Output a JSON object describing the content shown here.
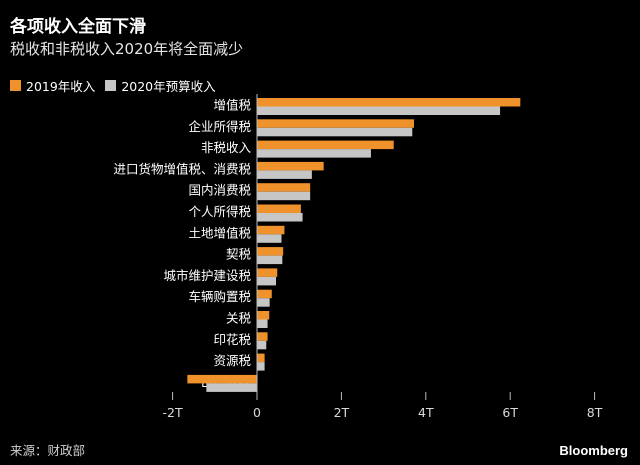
{
  "header": {
    "title": "各项收入全面下滑",
    "subtitle": "税收和非税收入2020年将全面减少"
  },
  "colors": {
    "series_2019": "#f0922b",
    "series_2020": "#c6c6c6",
    "background": "#000000"
  },
  "chart_data": {
    "type": "bar",
    "orientation": "horizontal",
    "categories": [
      "增值税",
      "企业所得税",
      "非税收入",
      "进口货物增值税、消费税",
      "国内消费税",
      "个人所得税",
      "土地增值税",
      "契税",
      "城市维护建设税",
      "车辆购置税",
      "关税",
      "印花税",
      "资源税",
      "出口退税"
    ],
    "series": [
      {
        "name": "2019年收入",
        "values": [
          6.24,
          3.72,
          3.24,
          1.58,
          1.26,
          1.04,
          0.65,
          0.62,
          0.48,
          0.35,
          0.29,
          0.25,
          0.18,
          -1.65
        ]
      },
      {
        "name": "2020年预算收入",
        "values": [
          5.76,
          3.68,
          2.7,
          1.3,
          1.26,
          1.08,
          0.58,
          0.6,
          0.45,
          0.3,
          0.25,
          0.22,
          0.18,
          -1.2
        ]
      }
    ],
    "xlim": [
      -2,
      8
    ],
    "xticks": [
      "-2T",
      "0",
      "2T",
      "4T",
      "6T",
      "8T"
    ],
    "grid": false,
    "legend_position": "top-left"
  },
  "footer": {
    "source": "来源：财政部",
    "brand": "Bloomberg"
  }
}
